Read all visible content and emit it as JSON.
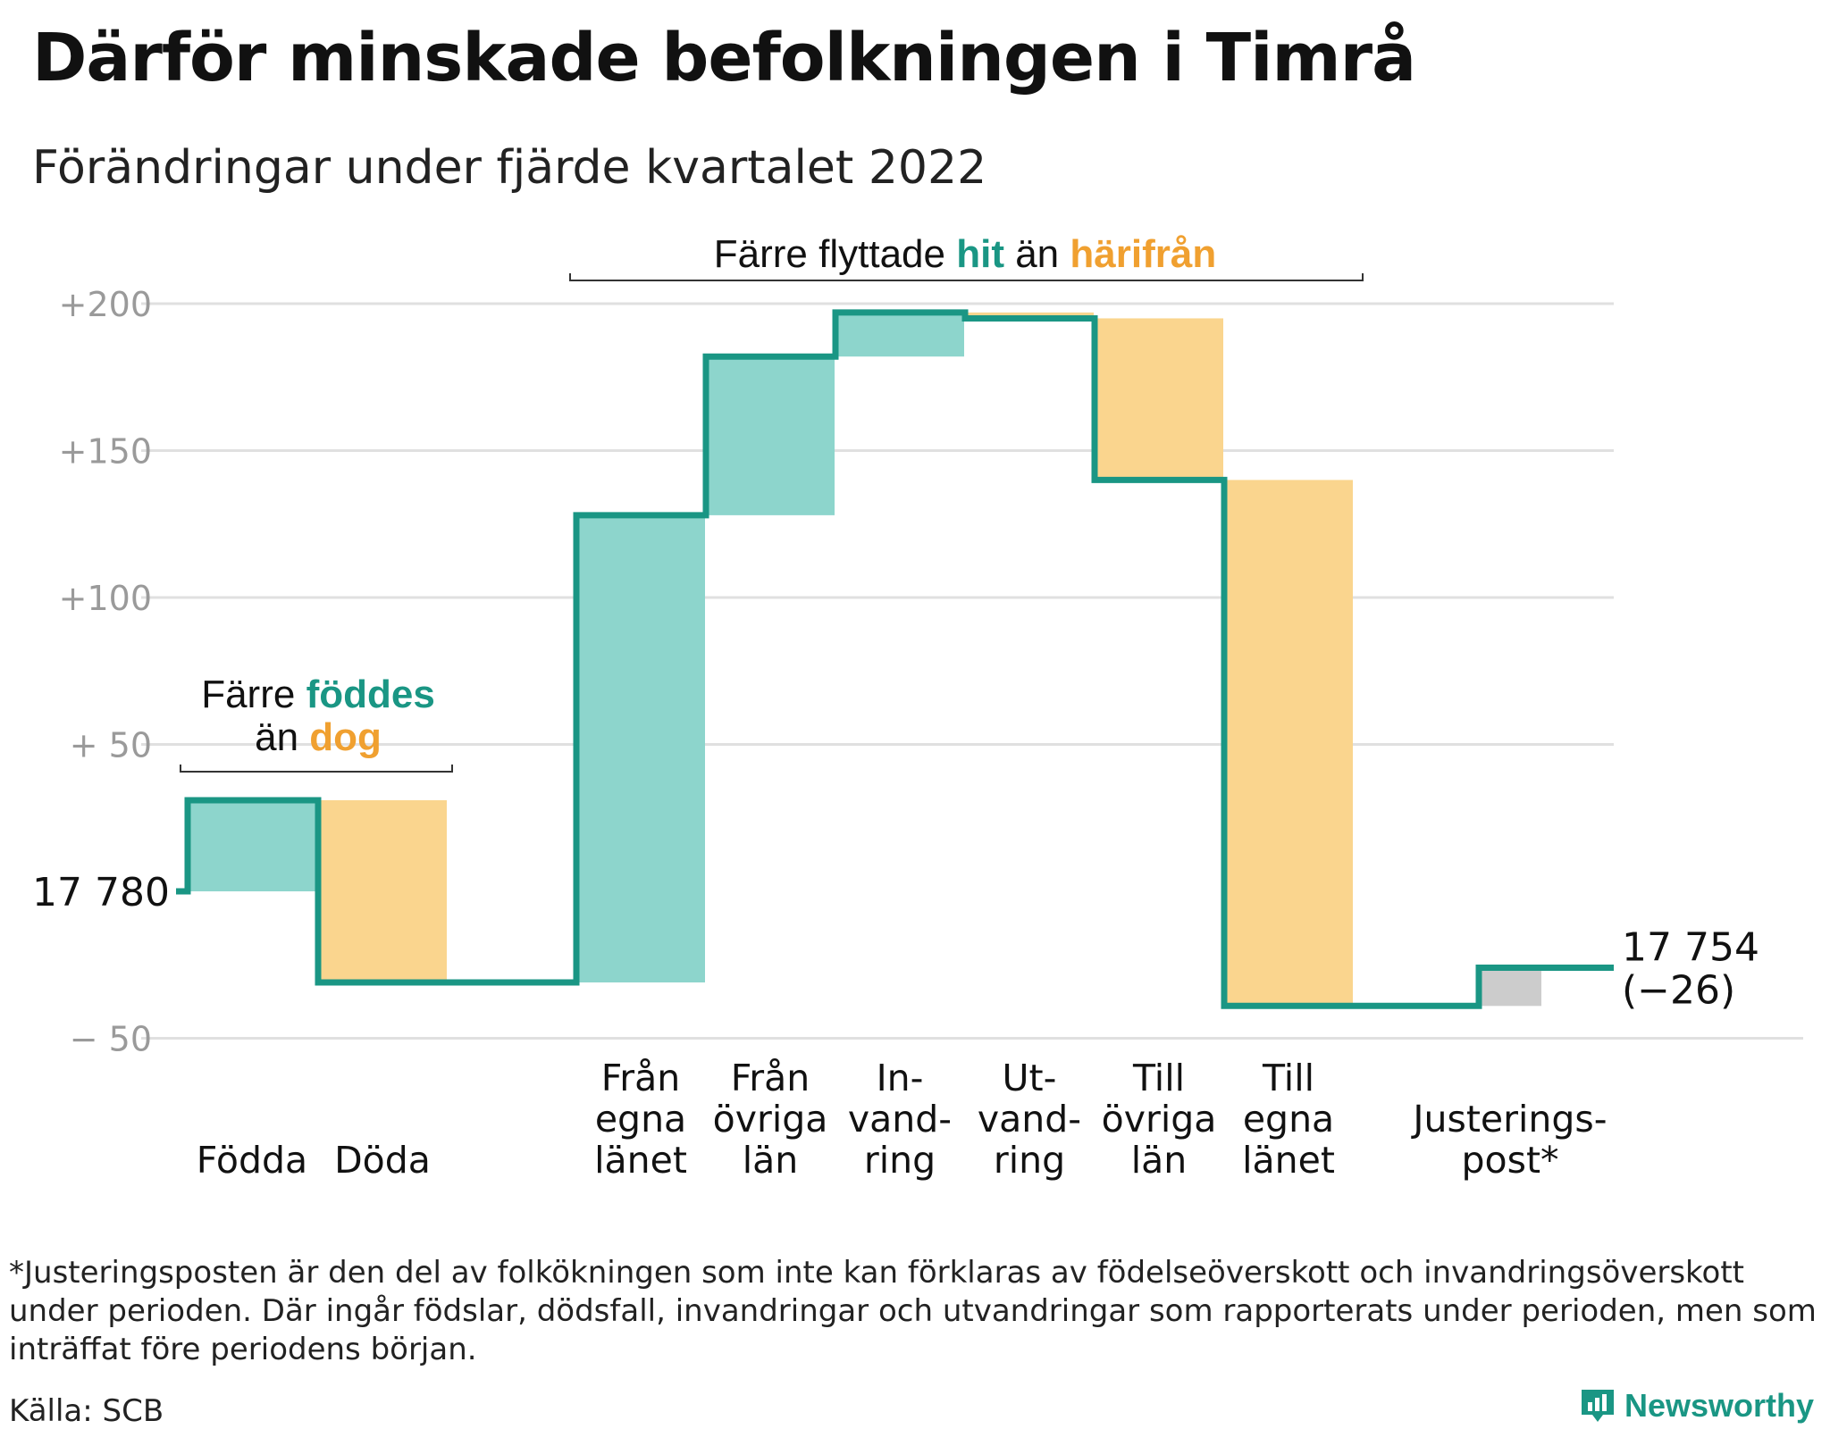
{
  "header": {
    "title": "Därför minskade befolkningen i Timrå",
    "subtitle": "Förändringar under fjärde kvartalet 2022"
  },
  "colors": {
    "increase": "#8dd5cc",
    "decrease": "#fad58e",
    "adjustment": "#cccccc",
    "line": "#1a9684",
    "accent_teal": "#1a9684",
    "accent_orange": "#f0a030",
    "grid": "#e0e0e0",
    "tick_text": "#9a9a9a"
  },
  "chart_data": {
    "type": "waterfall",
    "start_label": "17 780",
    "end_label": "17 754",
    "end_change": "(−26)",
    "y_ticks": [
      {
        "value": 200,
        "label": "+200"
      },
      {
        "value": 150,
        "label": "+150"
      },
      {
        "value": 100,
        "label": "+100"
      },
      {
        "value": 50,
        "label": "+ 50"
      },
      {
        "value": -50,
        "label": "− 50"
      }
    ],
    "ylim": [
      -50,
      200
    ],
    "steps": [
      {
        "label": [
          "Födda"
        ],
        "value": 31,
        "from": 0,
        "to": 31,
        "kind": "increase"
      },
      {
        "label": [
          "Döda"
        ],
        "value": -62,
        "from": 31,
        "to": -31,
        "kind": "decrease"
      },
      {
        "label": [
          "Från",
          "egna",
          "länet"
        ],
        "value": 159,
        "from": -31,
        "to": 128,
        "kind": "increase"
      },
      {
        "label": [
          "Från",
          "övriga",
          "län"
        ],
        "value": 54,
        "from": 128,
        "to": 182,
        "kind": "increase"
      },
      {
        "label": [
          "In-",
          "vand-",
          "ring"
        ],
        "value": 15,
        "from": 182,
        "to": 197,
        "kind": "increase"
      },
      {
        "label": [
          "Ut-",
          "vand-",
          "ring"
        ],
        "value": -2,
        "from": 197,
        "to": 195,
        "kind": "decrease"
      },
      {
        "label": [
          "Till",
          "övriga",
          "län"
        ],
        "value": -55,
        "from": 195,
        "to": 140,
        "kind": "decrease"
      },
      {
        "label": [
          "Till",
          "egna",
          "länet"
        ],
        "value": -179,
        "from": 140,
        "to": -39,
        "kind": "decrease"
      },
      {
        "label": [
          "Justerings-",
          "post*"
        ],
        "value": 13,
        "from": -39,
        "to": -26,
        "kind": "adjustment"
      }
    ],
    "annotations": {
      "births": {
        "line1_prefix": "Färre",
        "line1_highlight": "föddes",
        "line2_prefix": "än",
        "line2_highlight": "dog"
      },
      "moves": {
        "prefix": "Färre flyttade",
        "highlight1": "hit",
        "middle": "än",
        "highlight2": "härifrån"
      }
    }
  },
  "footnote": "*Justeringsposten är den del av folkökningen som inte kan förklaras av födelseöverskott och invandringsöverskott under perioden. Där ingår födslar, dödsfall, invandringar och utvandringar som rapporterats under perioden, men som inträffat före periodens början.",
  "source": "Källa: SCB",
  "brand": "Newsworthy"
}
